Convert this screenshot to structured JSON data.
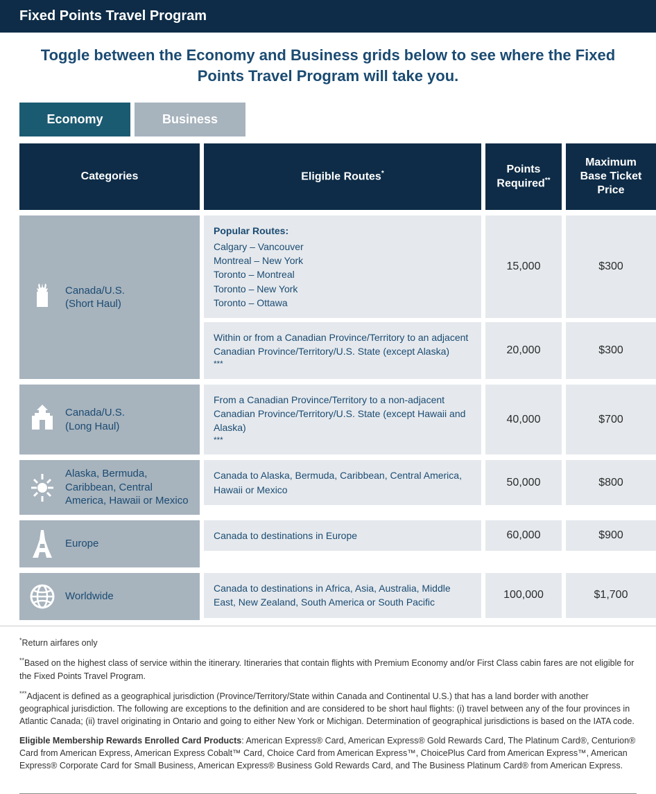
{
  "colors": {
    "header_bg": "#0e2c47",
    "accent_text": "#1b4b72",
    "tab_active_bg": "#1b5b72",
    "tab_inactive_bg": "#a7b3bd",
    "cat_bg": "#a7b3bd",
    "cell_bg": "#e5e9ed"
  },
  "header": {
    "title": "Fixed Points Travel Program"
  },
  "subtitle": "Toggle between the Economy and Business grids below to see where the Fixed Points Travel Program will take you.",
  "tabs": {
    "active": "Economy",
    "inactive": "Business"
  },
  "columns": {
    "categories": "Categories",
    "routes": "Eligible Routes",
    "routes_sup": "*",
    "points": "Points Required",
    "points_sup": "**",
    "price": "Maximum Base Ticket Price"
  },
  "rows": [
    {
      "icon": "liberty",
      "category": "Canada/U.S.\n(Short Haul)",
      "subrows": [
        {
          "route_popular_title": "Popular Routes:",
          "route_lines": [
            "Calgary – Vancouver",
            "Montreal – New York",
            "Toronto – Montreal",
            "Toronto – New York",
            "Toronto – Ottawa"
          ],
          "points": "15,000",
          "price": "$300"
        },
        {
          "route_text": "Within or from a Canadian Province/Territory to an adjacent Canadian Province/Territory/U.S. State (except Alaska)",
          "route_sup": "***",
          "points": "20,000",
          "price": "$300"
        }
      ]
    },
    {
      "icon": "capitol",
      "category": "Canada/U.S.\n(Long Haul)",
      "subrows": [
        {
          "route_text": "From a Canadian Province/Territory to a non-adjacent Canadian Province/Territory/U.S. State (except Hawaii and Alaska)",
          "route_sup": "***",
          "points": "40,000",
          "price": "$700"
        }
      ]
    },
    {
      "icon": "sun",
      "category": "Alaska, Bermuda, Caribbean, Central America, Hawaii or Mexico",
      "subrows": [
        {
          "route_text": "Canada to Alaska, Bermuda, Caribbean, Central America, Hawaii or Mexico",
          "points": "50,000",
          "price": "$800"
        }
      ]
    },
    {
      "icon": "eiffel",
      "category": "Europe",
      "subrows": [
        {
          "route_text": "Canada to destinations in Europe",
          "points": "60,000",
          "price": "$900"
        }
      ]
    },
    {
      "icon": "globe",
      "category": "Worldwide",
      "subrows": [
        {
          "route_text": "Canada to destinations in Africa, Asia, Australia, Middle East, New Zealand, South America or South Pacific",
          "points": "100,000",
          "price": "$1,700"
        }
      ]
    }
  ],
  "footnotes": {
    "f1_sup": "*",
    "f1": "Return airfares only",
    "f2_sup": "**",
    "f2": "Based on the highest class of service within the itinerary. Itineraries that contain flights with Premium Economy and/or First Class cabin fares are not eligible for the Fixed Points Travel Program.",
    "f3_sup": "***",
    "f3": "Adjacent is defined as a geographical jurisdiction (Province/Territory/State within Canada and Continental U.S.) that has a land border with another geographical jurisdiction. The following are exceptions to the definition and are considered to be short haul flights: (i) travel between any of the four provinces in Atlantic Canada; (ii) travel originating in Ontario and going to either New York or Michigan. Determination of geographical jurisdictions is based on the IATA code.",
    "f4_lead": "Eligible Membership Rewards Enrolled Card Products",
    "f4": ": American Express® Card, American Express® Gold Rewards Card, The Platinum Card®, Centurion® Card from American Express, American Express Cobalt™ Card, Choice Card from American Express™, ChoicePlus Card from American Express™, American Express® Corporate Card for Small Business, American Express® Business Gold Rewards Card, and The Business Platinum Card® from American Express."
  }
}
